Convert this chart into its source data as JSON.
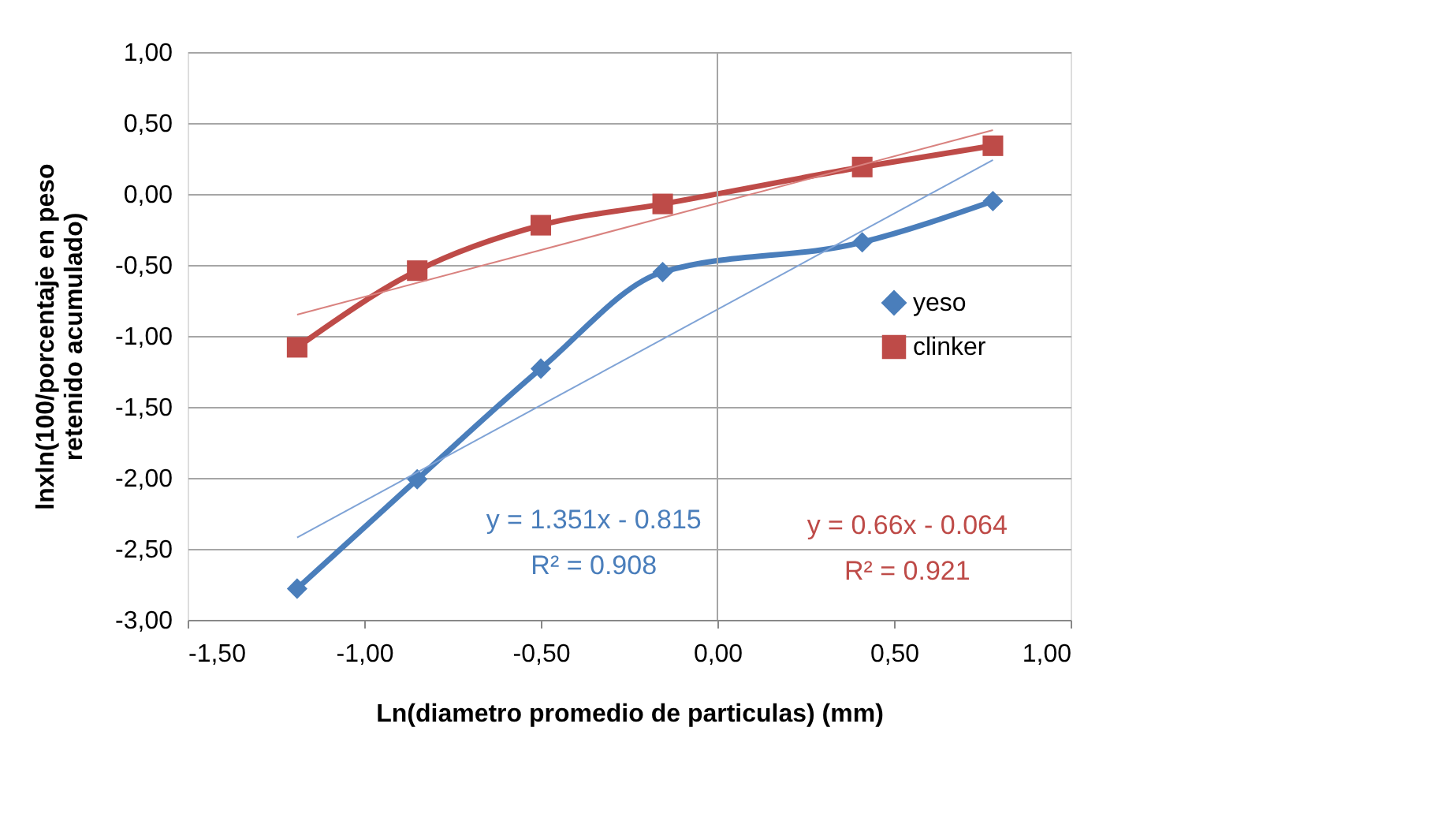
{
  "chart_data": {
    "type": "line",
    "xlabel": "Ln(diametro promedio de particulas) (mm)",
    "ylabel": "lnxln(100/porcentaje en peso\nretenido acumulado)",
    "xlim": [
      -1.5,
      1.0
    ],
    "xticks": [
      {
        "value": -1.5,
        "label": "-1,50"
      },
      {
        "value": -1.0,
        "label": "-1,00"
      },
      {
        "value": -0.5,
        "label": "-0,50"
      },
      {
        "value": 0,
        "label": "0,00"
      },
      {
        "value": 0.5,
        "label": "0,50"
      },
      {
        "value": 1.0,
        "label": "1,00"
      }
    ],
    "ylim": [
      -3.0,
      1.0
    ],
    "yticks": [
      {
        "value": -3.0,
        "label": "-3,00"
      },
      {
        "value": -2.5,
        "label": "-2,50"
      },
      {
        "value": -2.0,
        "label": "-2,00"
      },
      {
        "value": -1.5,
        "label": "-1,50"
      },
      {
        "value": -1.0,
        "label": "-1,00"
      },
      {
        "value": -0.5,
        "label": "-0,50"
      },
      {
        "value": 0,
        "label": "0,00"
      },
      {
        "value": 0.5,
        "label": "0,50"
      },
      {
        "value": 1.0,
        "label": "1,00"
      }
    ],
    "grid": "y",
    "legend": "right",
    "line_style": "solid",
    "ref_lines": [
      {
        "axis": "x",
        "value": 0,
        "color": "#a6a6a6"
      }
    ],
    "series": [
      {
        "name": "yeso",
        "color": "#4a7ebb",
        "marker": "diamond",
        "x": [
          -1.19,
          -0.85,
          -0.5,
          -0.155,
          0.41,
          0.78
        ],
        "values": [
          -2.78,
          -2.01,
          -1.23,
          -0.55,
          -0.34,
          -0.05
        ]
      },
      {
        "name": "clinker",
        "color": "#be4b48",
        "marker": "square",
        "x": [
          -1.19,
          -0.85,
          -0.5,
          -0.155,
          0.41,
          0.78
        ],
        "values": [
          -1.08,
          -0.54,
          -0.22,
          -0.07,
          0.19,
          0.34
        ]
      },
      {
        "color": "#7fa3d6",
        "marker": "none",
        "x": [
          -1.19,
          0.78
        ],
        "values": [
          -2.42,
          0.24
        ]
      },
      {
        "color": "#d9827f",
        "marker": "none",
        "x": [
          -1.19,
          0.78
        ],
        "values": [
          -0.85,
          0.45
        ]
      }
    ],
    "annotations": [
      "y = 1.351x - 0.815",
      "R² = 0.908",
      "y = 0.66x - 0.064",
      "R² = 0.921"
    ]
  }
}
